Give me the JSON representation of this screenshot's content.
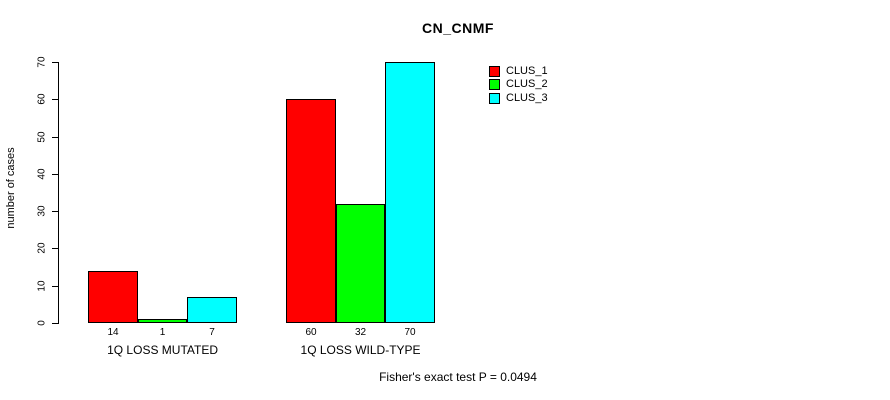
{
  "chart_data": {
    "type": "bar",
    "title": "CN_CNMF",
    "xlabel": "",
    "ylabel": "number of cases",
    "categories": [
      "1Q LOSS MUTATED",
      "1Q LOSS WILD-TYPE"
    ],
    "series": [
      {
        "name": "CLUS_1",
        "color": "#ff0000",
        "values": [
          14,
          60
        ]
      },
      {
        "name": "CLUS_2",
        "color": "#00ff00",
        "values": [
          1,
          32
        ]
      },
      {
        "name": "CLUS_3",
        "color": "#00ffff",
        "values": [
          7,
          70
        ]
      }
    ],
    "bar_value_labels": [
      [
        "14",
        "1",
        "7"
      ],
      [
        "60",
        "32",
        "70"
      ]
    ],
    "yticks": [
      0,
      10,
      20,
      30,
      40,
      50,
      60,
      70
    ],
    "ylim": [
      0,
      70
    ],
    "grid": false,
    "legend_position": "topright",
    "annotation": "Fisher's exact test P = 0.0494",
    "border_color": "#000000",
    "background_color": "#ffffff"
  }
}
